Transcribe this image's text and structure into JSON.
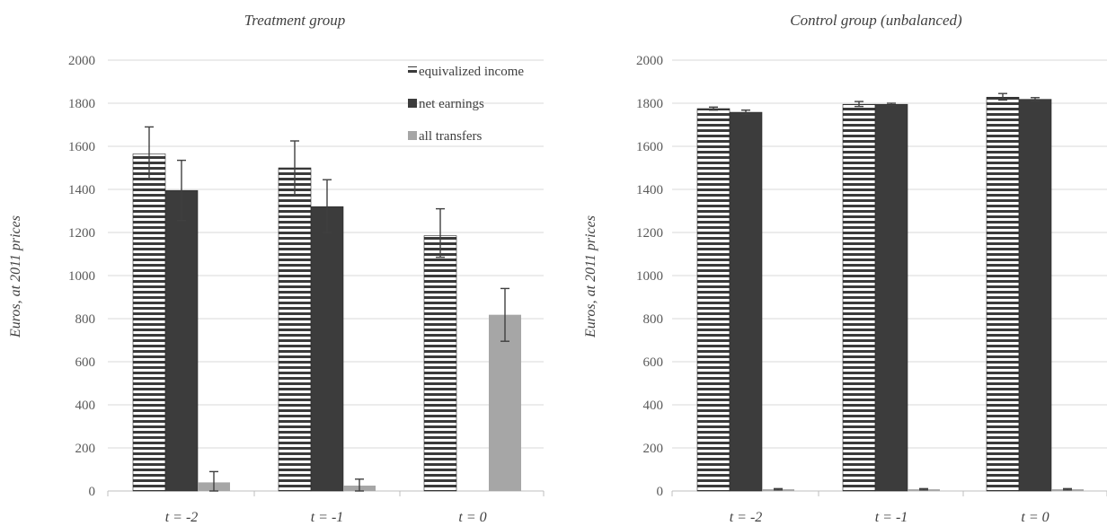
{
  "colors": {
    "grid": "#d9d9d9",
    "axis": "#bfbfbf",
    "equivalized_stripe_dark": "#3a3a3a",
    "net_earnings": "#3c3c3c",
    "all_transfers": "#a6a6a6",
    "error_bar": "#404040"
  },
  "legend_items": [
    {
      "label": "equivalized income",
      "style": "striped"
    },
    {
      "label": "net earnings",
      "style": "dark"
    },
    {
      "label": "all transfers",
      "style": "grey"
    }
  ],
  "chart_data": [
    {
      "type": "bar",
      "title": "Treatment group",
      "ylabel": "Euros, at 2011 prices",
      "xlabel": "",
      "ylim": [
        0,
        2000
      ],
      "yticks": [
        0,
        200,
        400,
        600,
        800,
        1000,
        1200,
        1400,
        1600,
        1800,
        2000
      ],
      "categories": [
        "t = -2",
        "t = -1",
        "t = 0"
      ],
      "legend": "top-right",
      "grid": true,
      "series": [
        {
          "name": "equivalized income",
          "values": [
            1565,
            1500,
            1185
          ],
          "err_low": [
            1445,
            1375,
            1085
          ],
          "err_high": [
            1690,
            1625,
            1310
          ]
        },
        {
          "name": "net earnings",
          "values": [
            1395,
            1320,
            0
          ],
          "err_low": [
            1255,
            1200,
            null
          ],
          "err_high": [
            1535,
            1445,
            null
          ]
        },
        {
          "name": "all transfers",
          "values": [
            40,
            25,
            818
          ],
          "err_low": [
            0,
            0,
            695
          ],
          "err_high": [
            90,
            55,
            940
          ]
        }
      ]
    },
    {
      "type": "bar",
      "title": "Control group (unbalanced)",
      "ylabel": "Euros, at 2011 prices",
      "xlabel": "",
      "ylim": [
        0,
        2000
      ],
      "yticks": [
        0,
        200,
        400,
        600,
        800,
        1000,
        1200,
        1400,
        1600,
        1800,
        2000
      ],
      "categories": [
        "t = -2",
        "t = -1",
        "t = 0"
      ],
      "grid": true,
      "series": [
        {
          "name": "equivalized income",
          "values": [
            1775,
            1795,
            1828
          ],
          "err_low": [
            1768,
            1785,
            1815
          ],
          "err_high": [
            1782,
            1808,
            1845
          ]
        },
        {
          "name": "net earnings",
          "values": [
            1758,
            1795,
            1818
          ],
          "err_low": [
            1748,
            1790,
            1810
          ],
          "err_high": [
            1768,
            1800,
            1826
          ]
        },
        {
          "name": "all transfers",
          "values": [
            8,
            8,
            8
          ],
          "err_low": [
            5,
            5,
            5
          ],
          "err_high": [
            11,
            11,
            11
          ]
        }
      ]
    }
  ]
}
